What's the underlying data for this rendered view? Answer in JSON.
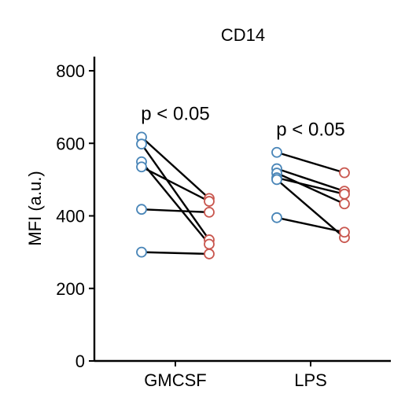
{
  "chart_data": {
    "type": "scatter",
    "title": "CD14",
    "xlabel": "",
    "ylabel": "MFI (a.u.)",
    "ylim": [
      0,
      840
    ],
    "yticks": [
      0,
      200,
      400,
      600,
      800
    ],
    "categories": [
      "GMCSF",
      "LPS"
    ],
    "colors": {
      "before": "#4a86b8",
      "after": "#c9574f"
    },
    "grid": false,
    "groups": [
      {
        "name": "GMCSF",
        "annotation": "p < 0.05",
        "annotation_y": 665,
        "pairs": [
          [
            617,
            448
          ],
          [
            598,
            334
          ],
          [
            549,
            322
          ],
          [
            535,
            440
          ],
          [
            418,
            410
          ],
          [
            300,
            295
          ]
        ]
      },
      {
        "name": "LPS",
        "annotation": "p < 0.05",
        "annotation_y": 621,
        "pairs": [
          [
            575,
            519
          ],
          [
            530,
            468
          ],
          [
            518,
            433
          ],
          [
            505,
            460
          ],
          [
            500,
            340
          ],
          [
            395,
            355
          ]
        ]
      }
    ]
  }
}
